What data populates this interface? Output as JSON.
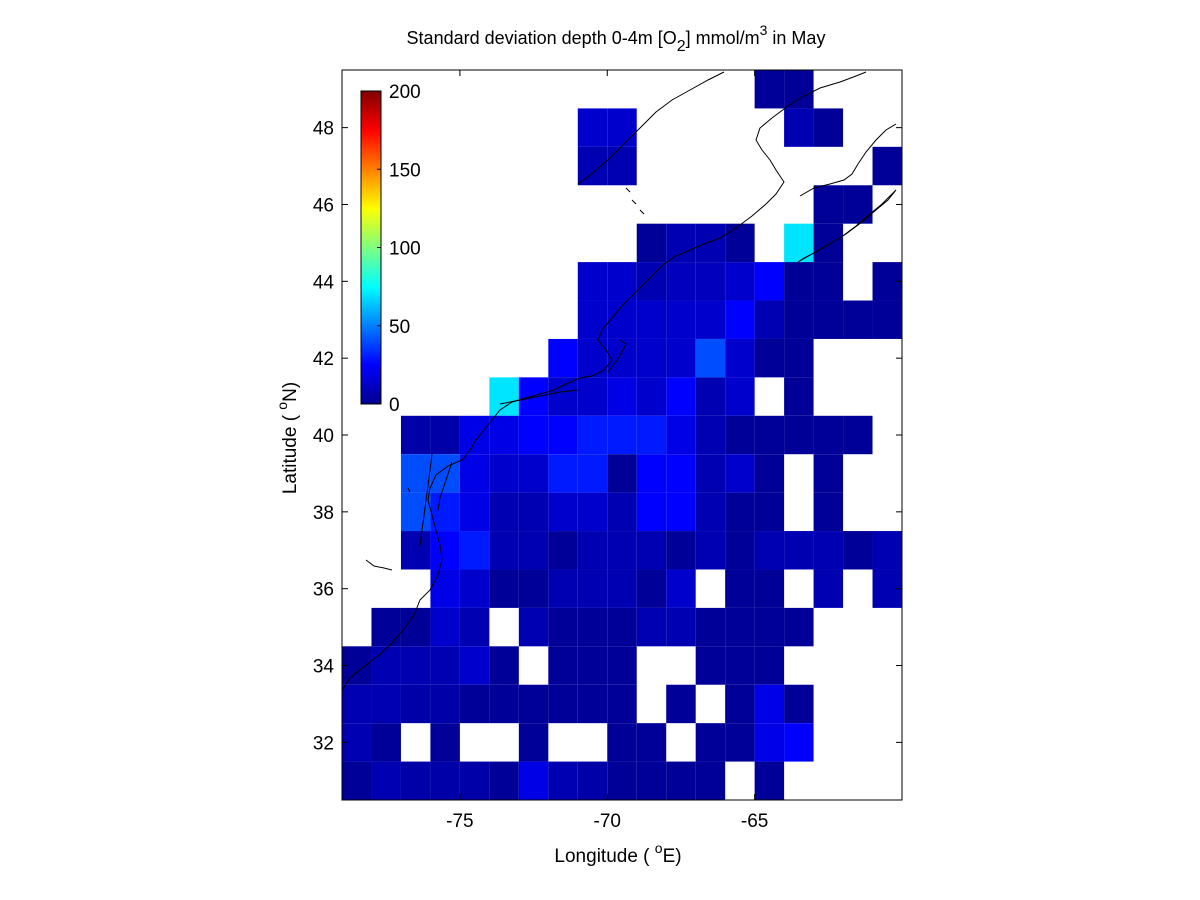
{
  "chart_data": {
    "type": "heatmap",
    "title": {
      "prefix": "Standard deviation depth 0-4m [O",
      "sub": "2",
      "middle": "] mmol/m",
      "sup": "3",
      "suffix": " in May"
    },
    "xlabel": {
      "before": "Longitude ( ",
      "sup": "o",
      "after": "E)"
    },
    "ylabel": {
      "before": "Latitude ( ",
      "sup": "o",
      "after": "N)"
    },
    "xlim": [
      -79.0,
      -60.0
    ],
    "ylim": [
      30.5,
      49.5
    ],
    "xticks": [
      -75,
      -70,
      -65
    ],
    "yticks": [
      32,
      34,
      36,
      38,
      40,
      42,
      44,
      46,
      48
    ],
    "cell_size_deg": 1,
    "x_centers": [
      -78.5,
      -77.5,
      -76.5,
      -75.5,
      -74.5,
      -73.5,
      -72.5,
      -71.5,
      -70.5,
      -69.5,
      -68.5,
      -67.5,
      -66.5,
      -65.5,
      -64.5,
      -63.5,
      -62.5,
      -61.5,
      -60.5
    ],
    "y_centers": [
      49,
      48,
      47,
      46,
      45,
      44,
      43,
      42,
      41,
      40,
      39,
      38,
      37,
      36,
      35,
      34,
      33,
      32,
      31
    ],
    "values": [
      [
        null,
        null,
        null,
        null,
        null,
        null,
        null,
        null,
        null,
        null,
        null,
        null,
        null,
        null,
        5,
        5,
        null,
        null,
        null
      ],
      [
        null,
        null,
        null,
        null,
        null,
        null,
        null,
        null,
        15,
        15,
        null,
        null,
        null,
        null,
        null,
        10,
        5,
        null,
        null
      ],
      [
        null,
        null,
        null,
        null,
        null,
        null,
        null,
        null,
        10,
        10,
        null,
        null,
        null,
        null,
        null,
        null,
        null,
        null,
        5
      ],
      [
        null,
        null,
        null,
        null,
        null,
        null,
        null,
        null,
        null,
        null,
        null,
        null,
        null,
        null,
        null,
        null,
        5,
        5,
        null
      ],
      [
        null,
        null,
        null,
        null,
        null,
        null,
        null,
        null,
        null,
        null,
        5,
        10,
        10,
        5,
        null,
        70,
        5,
        null,
        null
      ],
      [
        null,
        null,
        null,
        null,
        null,
        null,
        null,
        null,
        15,
        15,
        10,
        12,
        12,
        15,
        25,
        5,
        5,
        null,
        5
      ],
      [
        null,
        null,
        null,
        null,
        null,
        null,
        null,
        null,
        15,
        15,
        15,
        15,
        15,
        25,
        10,
        5,
        5,
        5,
        5
      ],
      [
        null,
        null,
        null,
        null,
        null,
        null,
        null,
        25,
        15,
        15,
        15,
        15,
        40,
        15,
        5,
        5,
        null,
        null,
        null
      ],
      [
        null,
        null,
        null,
        null,
        null,
        70,
        25,
        15,
        15,
        20,
        15,
        25,
        10,
        15,
        null,
        5,
        null,
        null,
        null
      ],
      [
        null,
        null,
        8,
        8,
        20,
        20,
        25,
        25,
        30,
        30,
        30,
        20,
        10,
        5,
        5,
        5,
        5,
        5,
        null
      ],
      [
        null,
        null,
        40,
        40,
        20,
        15,
        15,
        30,
        30,
        5,
        25,
        25,
        10,
        15,
        5,
        null,
        5,
        null,
        null
      ],
      [
        null,
        null,
        40,
        30,
        20,
        10,
        10,
        15,
        15,
        10,
        25,
        25,
        10,
        5,
        5,
        null,
        5,
        null,
        null
      ],
      [
        null,
        null,
        10,
        25,
        30,
        10,
        10,
        5,
        10,
        10,
        10,
        5,
        10,
        5,
        10,
        10,
        10,
        5,
        10
      ],
      [
        null,
        null,
        null,
        20,
        15,
        5,
        5,
        10,
        10,
        10,
        5,
        15,
        null,
        5,
        5,
        null,
        10,
        null,
        10
      ],
      [
        null,
        5,
        5,
        15,
        10,
        null,
        10,
        5,
        5,
        5,
        10,
        10,
        5,
        5,
        5,
        5,
        null,
        null,
        null
      ],
      [
        5,
        10,
        10,
        10,
        15,
        5,
        null,
        5,
        5,
        5,
        null,
        null,
        5,
        5,
        5,
        null,
        null,
        null,
        null
      ],
      [
        10,
        10,
        8,
        8,
        5,
        5,
        5,
        5,
        5,
        5,
        null,
        5,
        null,
        5,
        20,
        5,
        null,
        null,
        null
      ],
      [
        10,
        5,
        null,
        5,
        null,
        null,
        5,
        null,
        null,
        5,
        5,
        null,
        5,
        5,
        20,
        25,
        null,
        null,
        null
      ],
      [
        5,
        10,
        8,
        8,
        8,
        5,
        20,
        10,
        8,
        5,
        5,
        5,
        5,
        null,
        5,
        null,
        null,
        null,
        null
      ]
    ],
    "colorbar": {
      "colormap": "jet",
      "range": [
        0,
        200
      ],
      "ticks": [
        0,
        50,
        100,
        150,
        200
      ],
      "placement": "upper-left inside axes"
    },
    "grid": false,
    "coastline": "black thin line"
  }
}
